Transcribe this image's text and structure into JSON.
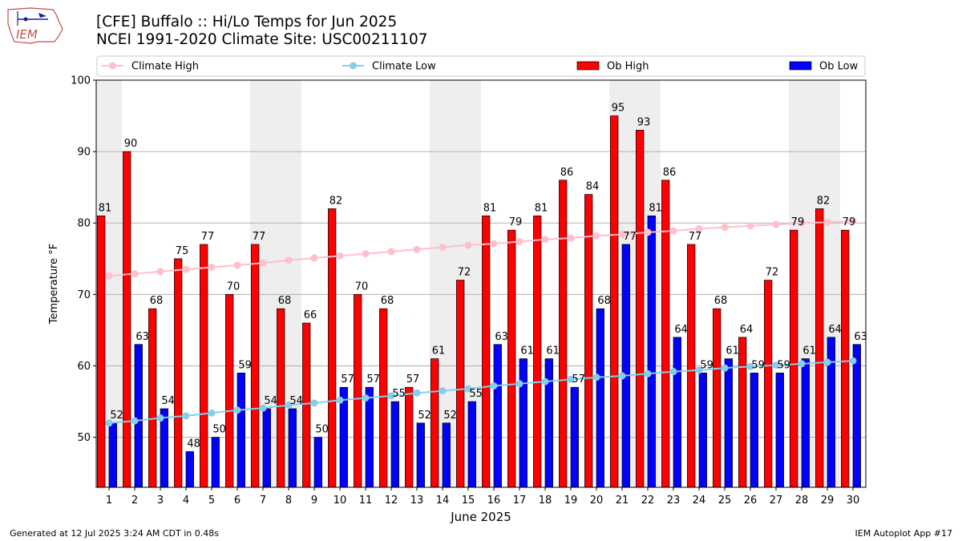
{
  "header": {
    "title_line1": "[CFE] Buffalo :: Hi/Lo Temps for Jun 2025",
    "title_line2": "NCEI 1991-2020 Climate Site: USC00211107",
    "logo_text": "IEM"
  },
  "footer": {
    "generated": "Generated at 12 Jul 2025 3:24 AM CDT in 0.48s",
    "app": "IEM Autoplot App #17"
  },
  "colors": {
    "ob_high": "#ff0000",
    "ob_low": "#0000ff",
    "climate_high": "#ffc0cb",
    "climate_low": "#87ceeb",
    "weekend_band": "#eeeeee"
  },
  "chart_data": {
    "type": "bar",
    "xlabel": "June 2025",
    "ylabel": "Temperature °F",
    "ylim": [
      43,
      100
    ],
    "yticks": [
      50,
      60,
      70,
      80,
      90,
      100
    ],
    "grid": "horizontal",
    "legend_placement": "top",
    "categories": [
      "1",
      "2",
      "3",
      "4",
      "5",
      "6",
      "7",
      "8",
      "9",
      "10",
      "11",
      "12",
      "13",
      "14",
      "15",
      "16",
      "17",
      "18",
      "19",
      "20",
      "21",
      "22",
      "23",
      "24",
      "25",
      "26",
      "27",
      "28",
      "29",
      "30"
    ],
    "weekend_days": [
      1,
      7,
      8,
      14,
      15,
      21,
      22,
      28,
      29
    ],
    "series": [
      {
        "name": "Ob High",
        "kind": "bar",
        "labels_shown": true,
        "values": [
          81,
          90,
          68,
          75,
          77,
          70,
          77,
          68,
          66,
          82,
          70,
          68,
          57,
          61,
          72,
          81,
          79,
          81,
          86,
          84,
          95,
          93,
          86,
          77,
          68,
          64,
          72,
          79,
          82,
          79
        ]
      },
      {
        "name": "Ob Low",
        "kind": "bar",
        "labels_shown": true,
        "values": [
          52,
          63,
          54,
          48,
          50,
          59,
          54,
          54,
          50,
          57,
          57,
          55,
          52,
          52,
          55,
          63,
          61,
          61,
          57,
          68,
          77,
          81,
          64,
          59,
          61,
          59,
          59,
          61,
          64,
          63
        ]
      },
      {
        "name": "Climate High",
        "kind": "line",
        "values": [
          72.6,
          72.9,
          73.2,
          73.5,
          73.8,
          74.1,
          74.4,
          74.8,
          75.1,
          75.4,
          75.7,
          76.0,
          76.3,
          76.6,
          76.9,
          77.1,
          77.4,
          77.7,
          77.9,
          78.2,
          78.4,
          78.7,
          78.9,
          79.2,
          79.4,
          79.6,
          79.8,
          80.0,
          80.1,
          80.3
        ]
      },
      {
        "name": "Climate Low",
        "kind": "line",
        "values": [
          52.0,
          52.3,
          52.7,
          53.0,
          53.4,
          53.8,
          54.1,
          54.5,
          54.8,
          55.2,
          55.5,
          55.8,
          56.2,
          56.5,
          56.8,
          57.2,
          57.5,
          57.8,
          58.1,
          58.4,
          58.6,
          58.9,
          59.2,
          59.4,
          59.7,
          59.9,
          60.1,
          60.3,
          60.5,
          60.7
        ]
      }
    ]
  }
}
